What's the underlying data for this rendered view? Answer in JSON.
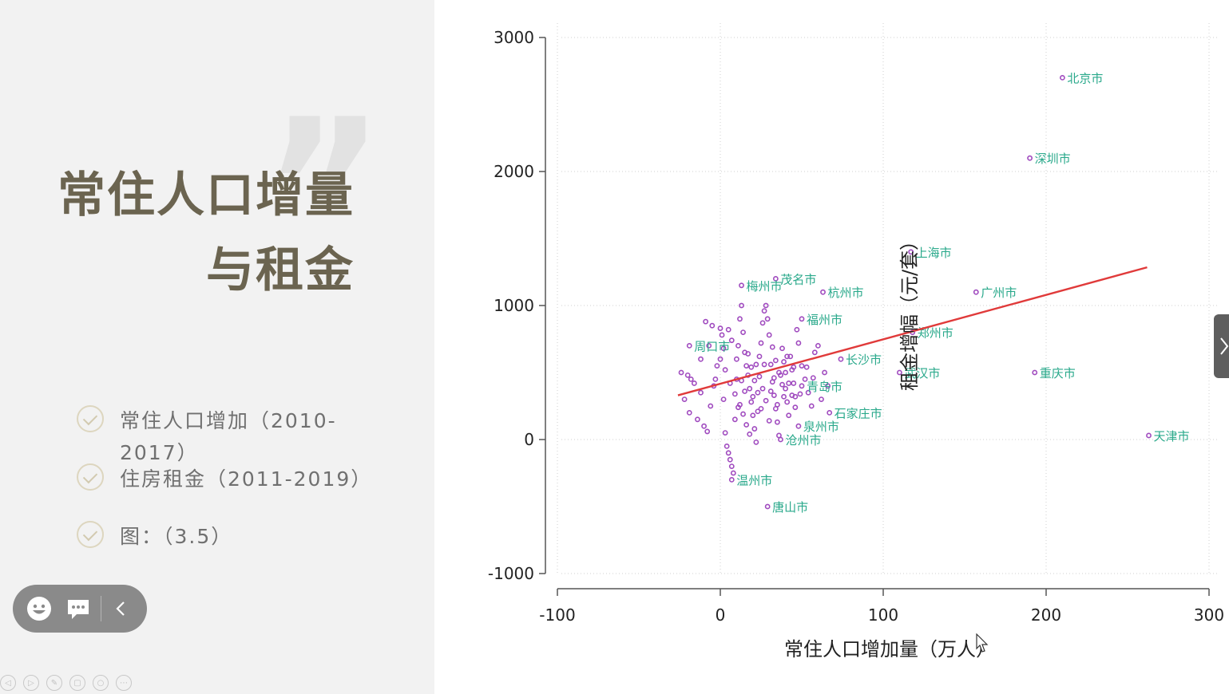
{
  "slide": {
    "title_line1": "常住人口增量",
    "title_line2": "与租金",
    "quote_mark": "”",
    "bullets": [
      {
        "text": "常住人口增加（2010-2017）"
      },
      {
        "text": "住房租金（2011-2019）"
      },
      {
        "text": "图：（3.5）"
      }
    ]
  },
  "toolbar": {
    "icons": [
      "smiley-icon",
      "comment-icon",
      "chevron-left-icon"
    ]
  },
  "colors": {
    "marker": "#a04bbf",
    "label": "#2aa98b",
    "fit_line": "#e03a3a",
    "title": "#6b6450"
  },
  "chart_data": {
    "type": "scatter",
    "xlabel": "常住人口增加量（万人）",
    "ylabel": "租金增幅（元/套）",
    "xlim": [
      -100,
      300
    ],
    "ylim": [
      -1000,
      3000
    ],
    "xticks": [
      "-100",
      "0",
      "100",
      "200",
      "300"
    ],
    "yticks": [
      "-1000",
      "0",
      "1000",
      "2000",
      "3000"
    ],
    "grid": true,
    "fit_line": {
      "x": [
        -26,
        262
      ],
      "y": [
        330,
        1285
      ]
    },
    "labeled_points": [
      {
        "x": 210,
        "y": 2700,
        "label": "北京市"
      },
      {
        "x": 190,
        "y": 2100,
        "label": "深圳市"
      },
      {
        "x": 117,
        "y": 1400,
        "label": "上海市"
      },
      {
        "x": 157,
        "y": 1100,
        "label": "广州市"
      },
      {
        "x": 118,
        "y": 800,
        "label": "郑州市"
      },
      {
        "x": 63,
        "y": 1100,
        "label": "杭州市"
      },
      {
        "x": 34,
        "y": 1200,
        "label": "茂名市"
      },
      {
        "x": 13,
        "y": 1150,
        "label": "梅州市"
      },
      {
        "x": 50,
        "y": 900,
        "label": "福州市"
      },
      {
        "x": 74,
        "y": 600,
        "label": "长沙市"
      },
      {
        "x": 110,
        "y": 500,
        "label": "武汉市"
      },
      {
        "x": 193,
        "y": 500,
        "label": "重庆市"
      },
      {
        "x": 67,
        "y": 200,
        "label": "石家庄市"
      },
      {
        "x": 48,
        "y": 100,
        "label": "泉州市"
      },
      {
        "x": 263,
        "y": 30,
        "label": "天津市"
      },
      {
        "x": 29,
        "y": -500,
        "label": "唐山市"
      },
      {
        "x": 7,
        "y": -300,
        "label": "温州市"
      },
      {
        "x": -19,
        "y": 700,
        "label": "周口市"
      },
      {
        "x": 50,
        "y": 400,
        "label": "青岛市"
      },
      {
        "x": 37,
        "y": 0,
        "label": "沧州市"
      }
    ],
    "cluster_points": [
      [
        -24,
        500
      ],
      [
        -20,
        480
      ],
      [
        -18,
        450
      ],
      [
        -16,
        420
      ],
      [
        -22,
        300
      ],
      [
        -19,
        200
      ],
      [
        -14,
        150
      ],
      [
        -12,
        350
      ],
      [
        -10,
        100
      ],
      [
        -8,
        60
      ],
      [
        -6,
        250
      ],
      [
        -4,
        400
      ],
      [
        -2,
        550
      ],
      [
        0,
        600
      ],
      [
        2,
        300
      ],
      [
        3,
        50
      ],
      [
        4,
        -50
      ],
      [
        5,
        -100
      ],
      [
        6,
        -150
      ],
      [
        7,
        -200
      ],
      [
        8,
        -250
      ],
      [
        9,
        150
      ],
      [
        10,
        450
      ],
      [
        11,
        700
      ],
      [
        12,
        900
      ],
      [
        13,
        1000
      ],
      [
        14,
        800
      ],
      [
        15,
        650
      ],
      [
        16,
        550
      ],
      [
        17,
        480
      ],
      [
        18,
        380
      ],
      [
        19,
        280
      ],
      [
        20,
        180
      ],
      [
        21,
        80
      ],
      [
        22,
        -20
      ],
      [
        23,
        350
      ],
      [
        24,
        620
      ],
      [
        25,
        720
      ],
      [
        26,
        870
      ],
      [
        27,
        960
      ],
      [
        28,
        1000
      ],
      [
        29,
        900
      ],
      [
        30,
        780
      ],
      [
        31,
        560
      ],
      [
        32,
        430
      ],
      [
        33,
        330
      ],
      [
        34,
        230
      ],
      [
        35,
        130
      ],
      [
        36,
        30
      ],
      [
        37,
        480
      ],
      [
        38,
        680
      ],
      [
        39,
        580
      ],
      [
        40,
        380
      ],
      [
        41,
        280
      ],
      [
        42,
        180
      ],
      [
        43,
        620
      ],
      [
        44,
        520
      ],
      [
        45,
        420
      ],
      [
        46,
        320
      ],
      [
        47,
        820
      ],
      [
        48,
        720
      ],
      [
        50,
        550
      ],
      [
        52,
        450
      ],
      [
        54,
        350
      ],
      [
        56,
        250
      ],
      [
        58,
        650
      ],
      [
        60,
        700
      ],
      [
        62,
        300
      ],
      [
        64,
        500
      ],
      [
        66,
        400
      ],
      [
        -9,
        880
      ],
      [
        -5,
        850
      ],
      [
        0,
        830
      ],
      [
        5,
        820
      ],
      [
        10,
        600
      ],
      [
        15,
        360
      ],
      [
        20,
        320
      ],
      [
        25,
        230
      ],
      [
        30,
        140
      ],
      [
        35,
        260
      ],
      [
        1,
        780
      ],
      [
        3,
        520
      ],
      [
        6,
        420
      ],
      [
        9,
        340
      ],
      [
        12,
        260
      ],
      [
        14,
        190
      ],
      [
        16,
        110
      ],
      [
        18,
        40
      ],
      [
        22,
        560
      ],
      [
        24,
        470
      ],
      [
        26,
        380
      ],
      [
        28,
        290
      ],
      [
        32,
        690
      ],
      [
        34,
        590
      ],
      [
        36,
        500
      ],
      [
        38,
        410
      ],
      [
        40,
        500
      ],
      [
        42,
        420
      ],
      [
        44,
        330
      ],
      [
        46,
        240
      ],
      [
        -12,
        600
      ],
      [
        -7,
        700
      ],
      [
        -3,
        450
      ],
      [
        2,
        680
      ],
      [
        7,
        740
      ],
      [
        11,
        240
      ],
      [
        13,
        440
      ],
      [
        17,
        640
      ],
      [
        19,
        540
      ],
      [
        21,
        440
      ],
      [
        23,
        210
      ],
      [
        27,
        560
      ],
      [
        31,
        360
      ],
      [
        33,
        460
      ],
      [
        39,
        320
      ],
      [
        41,
        620
      ],
      [
        45,
        540
      ],
      [
        49,
        340
      ],
      [
        53,
        540
      ],
      [
        57,
        460
      ]
    ]
  }
}
